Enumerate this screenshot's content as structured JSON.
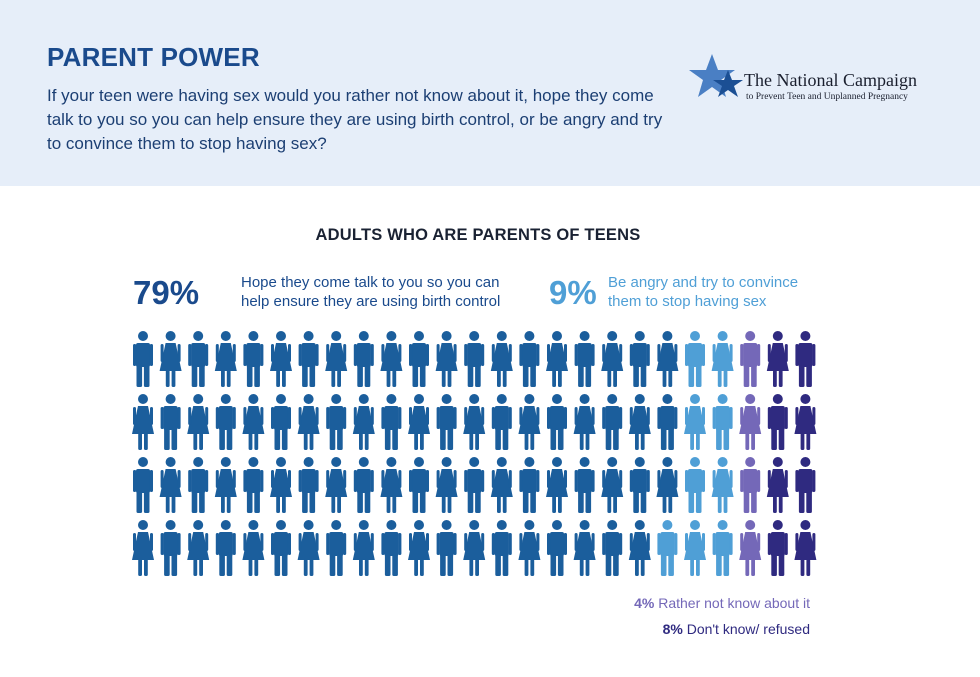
{
  "header": {
    "title": "PARENT POWER",
    "question": "If your teen were having sex would you rather not know about it, hope they come talk to you so you can help ensure they are using birth control, or be angry and try to convince them to stop having sex?",
    "logo": {
      "name": "The National Campaign",
      "subtitle": "to Prevent Teen and Unplanned Pregnancy",
      "icon": "star-icon"
    }
  },
  "chart_data": {
    "type": "pictograph",
    "title": "ADULTS WHO ARE PARENTS OF TEENS",
    "rows": 4,
    "columns": 25,
    "categories": [
      {
        "key": "talk",
        "label": "Hope they come talk to you so you can help ensure they are using birth control",
        "pct_label": "79%",
        "value": 79,
        "color": "#1b5e9c"
      },
      {
        "key": "angry",
        "label": "Be angry and try to convince them to stop having sex",
        "pct_label": "9%",
        "value": 9,
        "color": "#4f9fd6"
      },
      {
        "key": "notknow",
        "label": "Rather not know about it",
        "pct_label": "4%",
        "value": 4,
        "color": "#7468b8"
      },
      {
        "key": "dk",
        "label": "Don't know/ refused",
        "pct_label": "8%",
        "value": 8,
        "color": "#2f2a80"
      }
    ],
    "grid": [
      [
        "talk",
        "talk",
        "talk",
        "talk",
        "talk",
        "talk",
        "talk",
        "talk",
        "talk",
        "talk",
        "talk",
        "talk",
        "talk",
        "talk",
        "talk",
        "talk",
        "talk",
        "talk",
        "talk",
        "talk",
        "angry",
        "angry",
        "notknow",
        "dk",
        "dk"
      ],
      [
        "talk",
        "talk",
        "talk",
        "talk",
        "talk",
        "talk",
        "talk",
        "talk",
        "talk",
        "talk",
        "talk",
        "talk",
        "talk",
        "talk",
        "talk",
        "talk",
        "talk",
        "talk",
        "talk",
        "talk",
        "angry",
        "angry",
        "notknow",
        "dk",
        "dk"
      ],
      [
        "talk",
        "talk",
        "talk",
        "talk",
        "talk",
        "talk",
        "talk",
        "talk",
        "talk",
        "talk",
        "talk",
        "talk",
        "talk",
        "talk",
        "talk",
        "talk",
        "talk",
        "talk",
        "talk",
        "talk",
        "angry",
        "angry",
        "notknow",
        "dk",
        "dk"
      ],
      [
        "talk",
        "talk",
        "talk",
        "talk",
        "talk",
        "talk",
        "talk",
        "talk",
        "talk",
        "talk",
        "talk",
        "talk",
        "talk",
        "talk",
        "talk",
        "talk",
        "talk",
        "talk",
        "talk",
        "angry",
        "angry",
        "angry",
        "notknow",
        "dk",
        "dk"
      ]
    ]
  }
}
